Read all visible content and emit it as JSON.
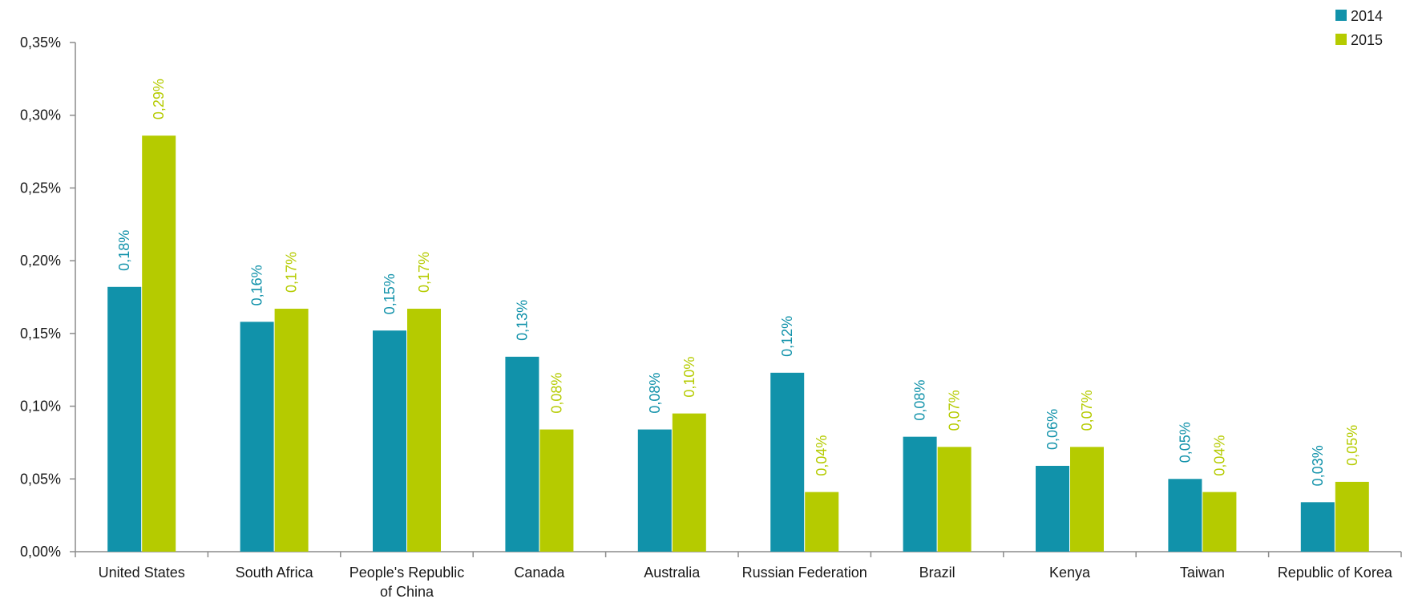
{
  "chart_data": {
    "type": "bar",
    "categories": [
      "United States",
      "South Africa",
      "People's Republic of China",
      "Canada",
      "Australia",
      "Russian Federation",
      "Brazil",
      "Kenya",
      "Taiwan",
      "Republic of Korea"
    ],
    "category_lines": [
      [
        "United States"
      ],
      [
        "South Africa"
      ],
      [
        "People's Republic",
        "of China"
      ],
      [
        "Canada"
      ],
      [
        "Australia"
      ],
      [
        "Russian Federation"
      ],
      [
        "Brazil"
      ],
      [
        "Kenya"
      ],
      [
        "Taiwan"
      ],
      [
        "Republic of Korea"
      ]
    ],
    "series": [
      {
        "name": "2014",
        "color": "#1192aa",
        "values": [
          0.182,
          0.158,
          0.152,
          0.134,
          0.084,
          0.123,
          0.079,
          0.059,
          0.05,
          0.034
        ],
        "labels": [
          "0,18%",
          "0,16%",
          "0,15%",
          "0,13%",
          "0,08%",
          "0,12%",
          "0,08%",
          "0,06%",
          "0,05%",
          "0,03%"
        ]
      },
      {
        "name": "2015",
        "color": "#b5cb00",
        "values": [
          0.286,
          0.167,
          0.167,
          0.084,
          0.095,
          0.041,
          0.072,
          0.072,
          0.041,
          0.048
        ],
        "labels": [
          "0,29%",
          "0,17%",
          "0,17%",
          "0,08%",
          "0,10%",
          "0,04%",
          "0,07%",
          "0,07%",
          "0,04%",
          "0,05%"
        ]
      }
    ],
    "ylim": [
      0,
      0.35
    ],
    "yticks": [
      0,
      0.05,
      0.1,
      0.15,
      0.2,
      0.25,
      0.3,
      0.35
    ],
    "ytick_labels": [
      "0,00%",
      "0,05%",
      "0,10%",
      "0,15%",
      "0,20%",
      "0,25%",
      "0,30%",
      "0,35%"
    ],
    "title": "",
    "xlabel": "",
    "ylabel": "",
    "grid": false,
    "legend_position": "top-right",
    "axis_color": "#8c8c8c"
  }
}
